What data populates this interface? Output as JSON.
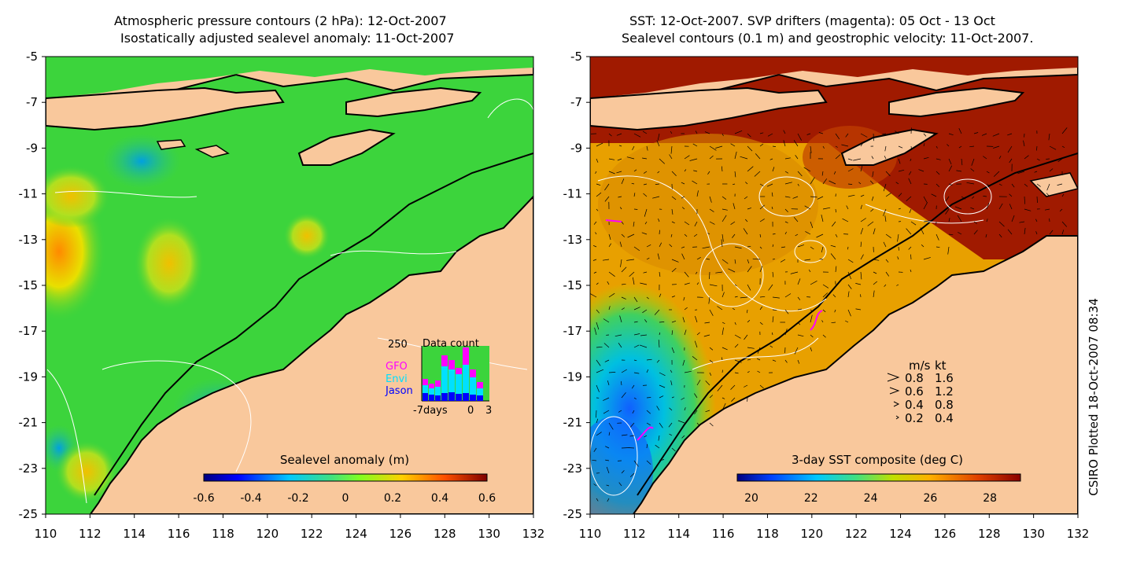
{
  "left_panel": {
    "title_line1": "Atmospheric pressure contours (2 hPa): 12-Oct-2007",
    "title_line2": "Isostatically adjusted sealevel anomaly: 11-Oct-2007",
    "colorbar_label": "Sealevel anomaly (m)",
    "colorbar_ticks": [
      "-0.6",
      "-0.4",
      "-0.2",
      "0",
      "0.2",
      "0.4",
      "0.6"
    ],
    "inset": {
      "title": "Data count",
      "max_label": "250",
      "series": [
        "GFO",
        "Envi",
        "Jason"
      ],
      "x_labels": [
        "-7days",
        "0",
        "3"
      ]
    }
  },
  "right_panel": {
    "title_line1": "SST: 12-Oct-2007. SVP drifters (magenta): 05 Oct - 13 Oct",
    "title_line2": "Sealevel contours (0.1 m) and geostrophic velocity: 11-Oct-2007.",
    "colorbar_label": "3-day SST composite (deg C)",
    "colorbar_ticks": [
      "20",
      "22",
      "24",
      "26",
      "28"
    ],
    "velocity_legend": {
      "header_ms": "m/s",
      "header_kt": "kt",
      "rows": [
        {
          "ms": "0.8",
          "kt": "1.6"
        },
        {
          "ms": "0.6",
          "kt": "1.2"
        },
        {
          "ms": "0.4",
          "kt": "0.8"
        },
        {
          "ms": "0.2",
          "kt": "0.4"
        }
      ]
    }
  },
  "axes": {
    "x_ticks": [
      "110",
      "112",
      "114",
      "116",
      "118",
      "120",
      "122",
      "124",
      "126",
      "128",
      "130",
      "132"
    ],
    "y_ticks": [
      "-5",
      "-7",
      "-9",
      "-11",
      "-13",
      "-15",
      "-17",
      "-19",
      "-21",
      "-23",
      "-25"
    ]
  },
  "credit": "CSIRO Plotted 18-Oct-2007 08:34",
  "colors": {
    "land": "#f9c89c",
    "sea_left": "#3cd43c",
    "sst_hot": "#a01a00",
    "sst_warm": "#e8a000"
  }
}
